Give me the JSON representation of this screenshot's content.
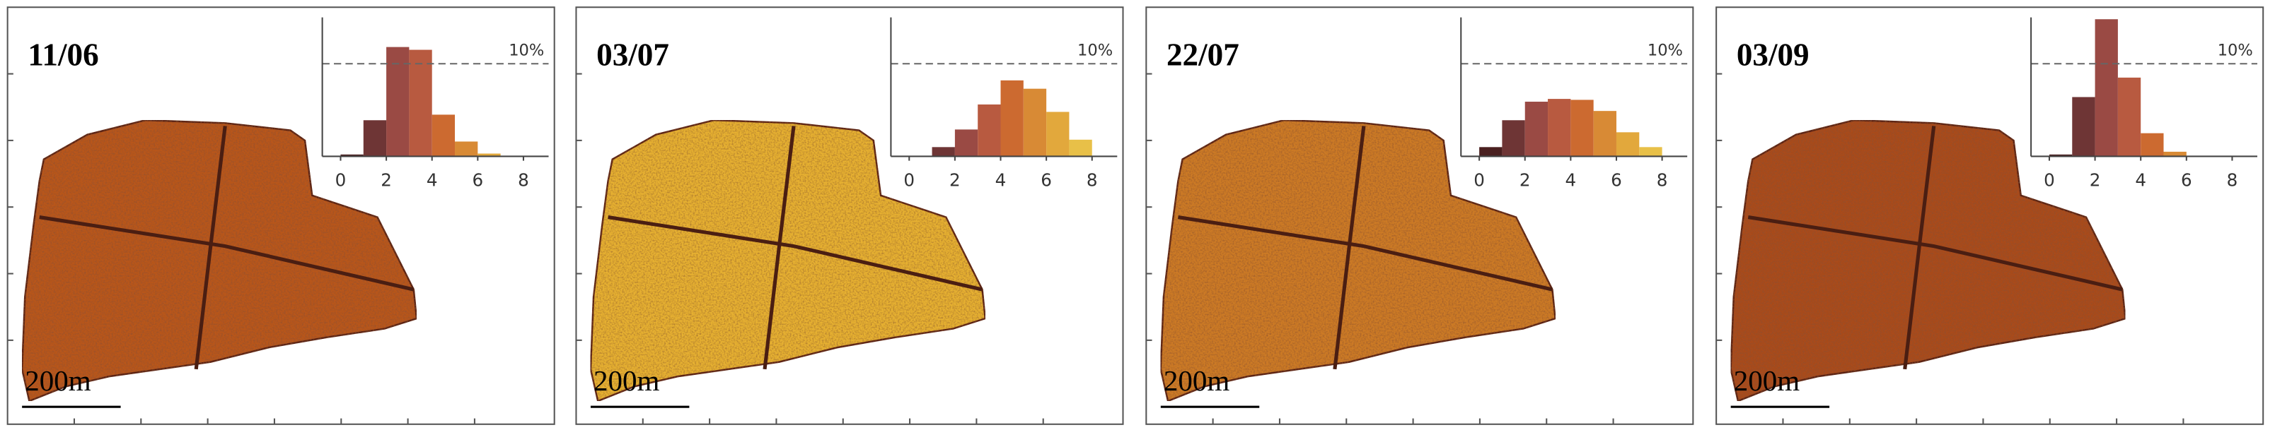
{
  "chart_data": [
    {
      "type": "histogram",
      "title": "11/06",
      "scale_label": "200m",
      "map_color": "#b8561f",
      "bins": [
        0,
        1,
        2,
        3,
        4,
        5,
        6,
        7,
        8
      ],
      "values": [
        0.2,
        3.9,
        11.8,
        11.5,
        4.5,
        1.6,
        0.3,
        0
      ],
      "colors": [
        "#4a2020",
        "#6e3535",
        "#9a4a44",
        "#b85a40",
        "#cc6a30",
        "#d88a35",
        "#e2a83c",
        "#e8c048"
      ],
      "xlim": [
        -0.8,
        9.1
      ],
      "xticks": [
        0,
        2,
        4,
        6,
        8
      ],
      "ylim": [
        0,
        15
      ],
      "reference_line": {
        "value": 10,
        "label": "10%"
      }
    },
    {
      "type": "histogram",
      "title": "03/07",
      "scale_label": "200m",
      "map_color": "#e6b032",
      "bins": [
        0,
        1,
        2,
        3,
        4,
        5,
        6,
        7,
        8
      ],
      "values": [
        0,
        1.0,
        2.9,
        5.6,
        8.2,
        7.3,
        4.8,
        1.8
      ],
      "colors": [
        "#4a2020",
        "#6e3535",
        "#9a4a44",
        "#b85a40",
        "#cc6a30",
        "#d88a35",
        "#e2a83c",
        "#e8c048"
      ],
      "xlim": [
        -0.8,
        9.1
      ],
      "xticks": [
        0,
        2,
        4,
        6,
        8
      ],
      "ylim": [
        0,
        15
      ],
      "reference_line": {
        "value": 10,
        "label": "10%"
      }
    },
    {
      "type": "histogram",
      "title": "22/07",
      "scale_label": "200m",
      "map_color": "#cc7a26",
      "bins": [
        0,
        1,
        2,
        3,
        4,
        5,
        6,
        7,
        8
      ],
      "values": [
        1.0,
        3.9,
        5.9,
        6.2,
        6.1,
        4.9,
        2.6,
        1.0
      ],
      "colors": [
        "#4a2020",
        "#6e3535",
        "#9a4a44",
        "#b85a40",
        "#cc6a30",
        "#d88a35",
        "#e2a83c",
        "#e8c048"
      ],
      "xlim": [
        -0.8,
        9.1
      ],
      "xticks": [
        0,
        2,
        4,
        6,
        8
      ],
      "ylim": [
        0,
        15
      ],
      "reference_line": {
        "value": 10,
        "label": "10%"
      }
    },
    {
      "type": "histogram",
      "title": "03/09",
      "scale_label": "200m",
      "map_color": "#a94b1f",
      "bins": [
        0,
        1,
        2,
        3,
        4,
        5,
        6,
        7,
        8
      ],
      "values": [
        0.2,
        6.4,
        14.8,
        8.5,
        2.5,
        0.5,
        0,
        0
      ],
      "colors": [
        "#4a2020",
        "#6e3535",
        "#9a4a44",
        "#b85a40",
        "#cc6a30",
        "#d88a35",
        "#e2a83c",
        "#e8c048"
      ],
      "xlim": [
        -0.8,
        9.1
      ],
      "xticks": [
        0,
        2,
        4,
        6,
        8
      ],
      "ylim": [
        0,
        15
      ],
      "reference_line": {
        "value": 10,
        "label": "10%"
      }
    }
  ]
}
